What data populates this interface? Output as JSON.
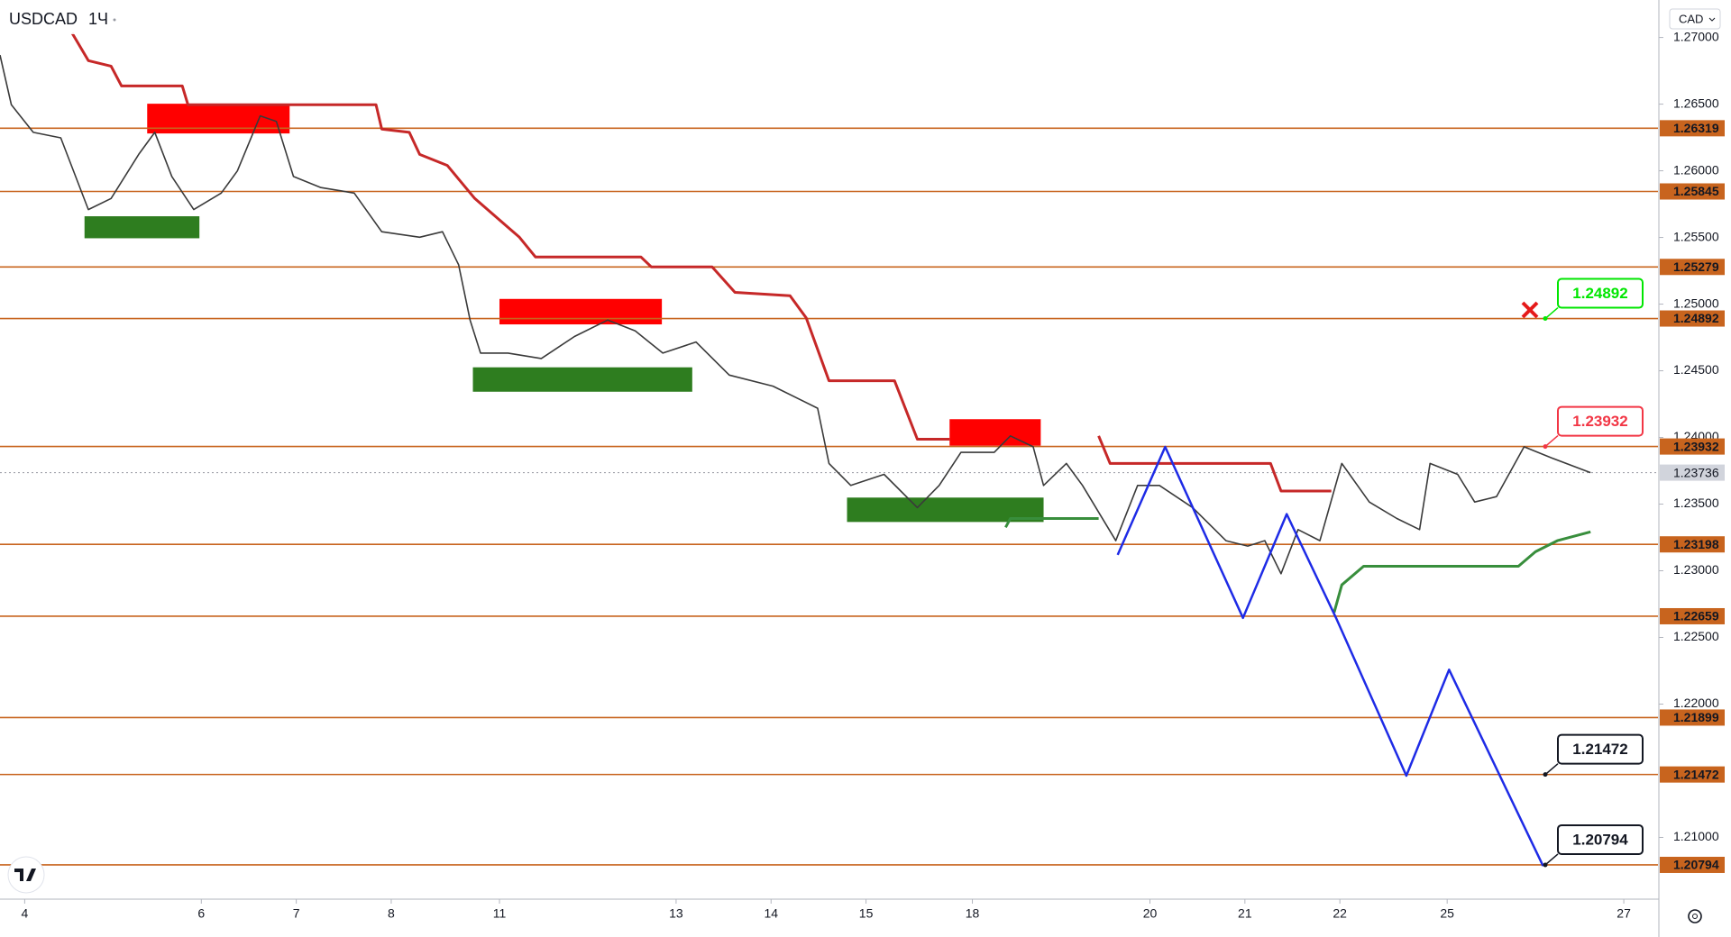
{
  "chart_data": {
    "type": "line",
    "symbol": "USDCAD",
    "interval": "1Ч",
    "currency": "CAD",
    "xlim": [
      -0.26,
      17.2
    ],
    "ylim": [
      1.20537,
      1.27281
    ],
    "xticks": [
      {
        "value": 0,
        "label": "4"
      },
      {
        "value": 1.86,
        "label": "6"
      },
      {
        "value": 2.86,
        "label": "7"
      },
      {
        "value": 3.86,
        "label": "8"
      },
      {
        "value": 5.0,
        "label": "11"
      },
      {
        "value": 6.86,
        "label": "13"
      },
      {
        "value": 7.86,
        "label": "14"
      },
      {
        "value": 8.86,
        "label": "15"
      },
      {
        "value": 9.98,
        "label": "18"
      },
      {
        "value": 11.85,
        "label": "20"
      },
      {
        "value": 12.85,
        "label": "21"
      },
      {
        "value": 13.85,
        "label": "22"
      },
      {
        "value": 14.98,
        "label": "25"
      },
      {
        "value": 16.84,
        "label": "27"
      }
    ],
    "yticks": [
      {
        "value": 1.27,
        "label": "1.27000"
      },
      {
        "value": 1.265,
        "label": "1.26500"
      },
      {
        "value": 1.26,
        "label": "1.26000"
      },
      {
        "value": 1.255,
        "label": "1.25500"
      },
      {
        "value": 1.25,
        "label": "1.25000"
      },
      {
        "value": 1.245,
        "label": "1.24500"
      },
      {
        "value": 1.24,
        "label": "1.24000"
      },
      {
        "value": 1.235,
        "label": "1.23500"
      },
      {
        "value": 1.23,
        "label": "1.23000"
      },
      {
        "value": 1.225,
        "label": "1.22500"
      },
      {
        "value": 1.22,
        "label": "1.22000"
      },
      {
        "value": 1.21,
        "label": "1.21000"
      }
    ],
    "series": [
      {
        "color": "#3a3a3a",
        "width": 1.6,
        "x": [
          -0.26,
          -0.14,
          0.09,
          0.38,
          0.67,
          0.91,
          1.2,
          1.37,
          1.55,
          1.78,
          2.07,
          2.24,
          2.48,
          2.65,
          2.83,
          3.12,
          3.47,
          3.76,
          4.16,
          4.4,
          4.57,
          4.69,
          4.8,
          5.09,
          5.44,
          5.79,
          6.14,
          6.43,
          6.72,
          7.07,
          7.42,
          7.88,
          8.35,
          8.47,
          8.7,
          9.05,
          9.4,
          9.63,
          9.86,
          10.21,
          10.38,
          10.62,
          10.73,
          10.97,
          11.14,
          11.49,
          11.72,
          11.95,
          12.3,
          12.65,
          12.88,
          13.06,
          13.23,
          13.41,
          13.64,
          13.87,
          14.16,
          14.45,
          14.69,
          14.8,
          15.09,
          15.27,
          15.5,
          15.79,
          16.08,
          16.49
        ],
        "values": [
          1.26868,
          1.26495,
          1.26288,
          1.26247,
          1.25709,
          1.25792,
          1.26123,
          1.26288,
          1.25957,
          1.25709,
          1.25833,
          1.25999,
          1.26412,
          1.26371,
          1.25957,
          1.25874,
          1.25833,
          1.25543,
          1.25502,
          1.25543,
          1.25295,
          1.24881,
          1.24633,
          1.24633,
          1.24592,
          1.24757,
          1.24881,
          1.24799,
          1.24633,
          1.24716,
          1.24468,
          1.24385,
          1.24219,
          1.23805,
          1.2364,
          1.23723,
          1.23474,
          1.2364,
          1.23888,
          1.23888,
          1.24012,
          1.2393,
          1.2364,
          1.23805,
          1.2364,
          1.23226,
          1.2364,
          1.2364,
          1.23474,
          1.23226,
          1.23185,
          1.23226,
          1.22978,
          1.23309,
          1.23226,
          1.23805,
          1.23516,
          1.23392,
          1.23309,
          1.23805,
          1.23723,
          1.23516,
          1.23556,
          1.2393,
          1.23847,
          1.23736
        ]
      },
      {
        "color": "#c62828",
        "width": 3,
        "x": [
          0.5,
          0.67,
          0.91,
          1.02,
          1.66,
          1.72,
          3.7,
          3.76,
          4.05,
          4.16,
          4.45,
          4.74,
          5.21,
          5.38,
          6.49,
          6.6,
          7.24,
          7.48,
          8.06,
          8.23,
          8.47,
          9.16,
          9.4,
          9.74,
          10.5,
          11.31,
          11.43,
          13.12,
          13.23,
          13.76
        ],
        "values": [
          1.27033,
          1.26826,
          1.26785,
          1.26636,
          1.26636,
          1.26495,
          1.26495,
          1.26313,
          1.26288,
          1.26123,
          1.2604,
          1.25792,
          1.25502,
          1.25353,
          1.25353,
          1.25279,
          1.25279,
          1.25088,
          1.25063,
          1.24897,
          1.24425,
          1.24425,
          1.23987,
          1.23987,
          null,
          1.24012,
          1.23805,
          1.23805,
          1.23598,
          1.23598
        ]
      },
      {
        "color": "#388e3c",
        "width": 3,
        "x": [
          10.33,
          10.38,
          11.31,
          12.5,
          13.79,
          13.87,
          14.1,
          15.73,
          15.91,
          16.14,
          16.49
        ],
        "values": [
          1.23326,
          1.23392,
          1.23392,
          null,
          1.22687,
          1.22894,
          1.23034,
          1.23034,
          1.23143,
          1.23226,
          1.23292
        ]
      },
      {
        "color": "#1e2be6",
        "width": 2.5,
        "x": [
          11.51,
          12.01,
          12.83,
          13.29,
          13.81,
          14.55,
          15.0,
          15.99
        ],
        "values": [
          1.23119,
          1.23929,
          1.22647,
          1.23425,
          1.22647,
          1.21463,
          1.22258,
          1.20786
        ]
      }
    ],
    "zones": [
      {
        "color": "#ff0000",
        "x": [
          1.29,
          2.79
        ],
        "y": [
          1.26503,
          1.2628
        ]
      },
      {
        "color": "#2e7d1f",
        "x": [
          0.63,
          1.84
        ],
        "y": [
          1.25659,
          1.25494
        ]
      },
      {
        "color": "#ff0000",
        "x": [
          5.0,
          6.71
        ],
        "y": [
          1.25039,
          1.24848
        ]
      },
      {
        "color": "#2e7d1f",
        "x": [
          4.72,
          7.03
        ],
        "y": [
          1.24526,
          1.24343
        ]
      },
      {
        "color": "#ff0000",
        "x": [
          9.74,
          10.7
        ],
        "y": [
          1.24137,
          1.23938
        ]
      },
      {
        "color": "#2e7d1f",
        "x": [
          8.66,
          10.73
        ],
        "y": [
          1.23549,
          1.23366
        ]
      }
    ],
    "levels": [
      1.26319,
      1.25845,
      1.25279,
      1.24892,
      1.23932,
      1.23198,
      1.22659,
      1.21899,
      1.21472,
      1.20794
    ],
    "level_color": "#c8641e",
    "last": 1.23736,
    "targets": [
      {
        "value": 1.24892,
        "color": "#00e600"
      },
      {
        "value": 1.23932,
        "color": "#f23645"
      },
      {
        "value": 1.21472,
        "color": "#131722"
      },
      {
        "value": 1.20794,
        "color": "#131722"
      }
    ]
  }
}
